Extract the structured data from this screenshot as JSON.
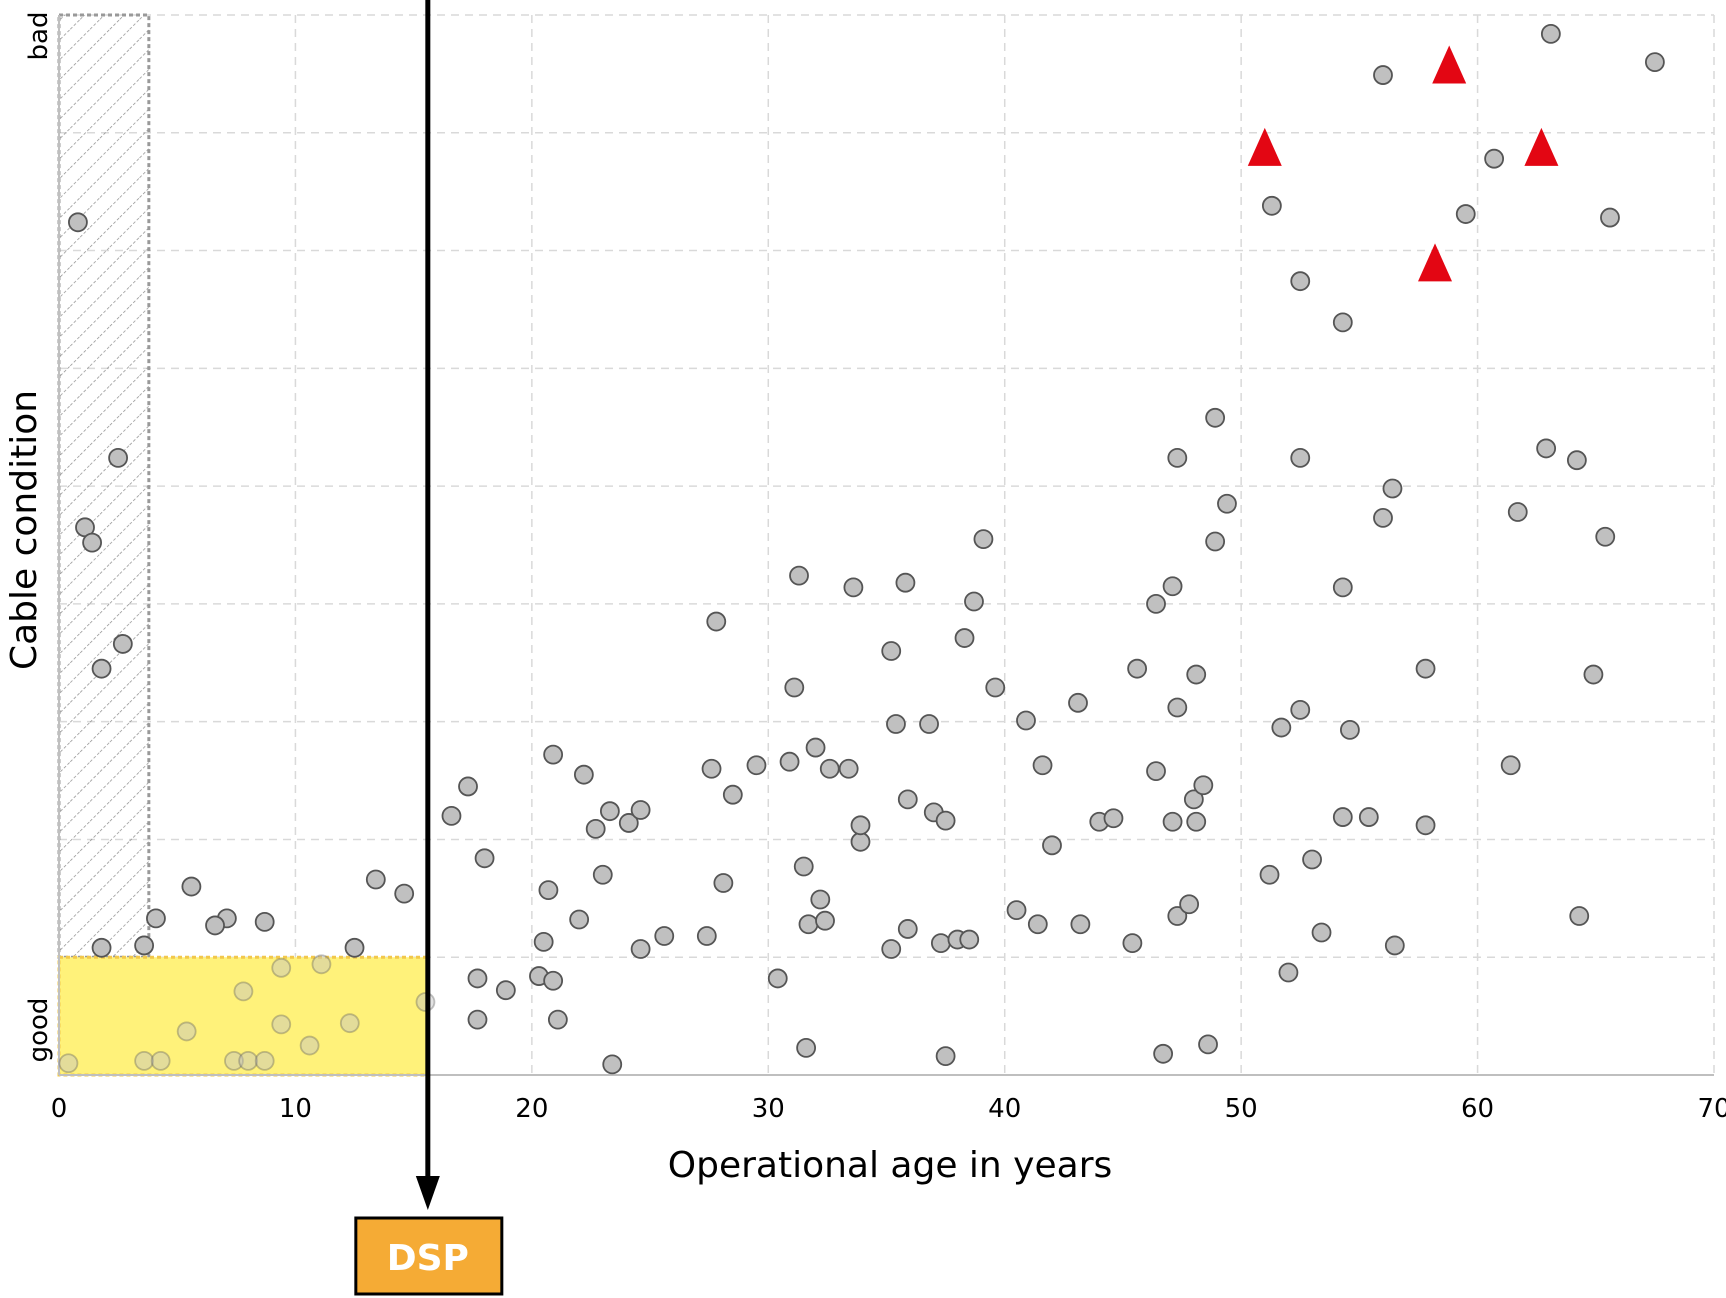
{
  "chart_data": {
    "type": "scatter",
    "xlabel": "Operational age in years",
    "ylabel": "Cable condition",
    "xlim": [
      0,
      70
    ],
    "ylim": [
      0,
      9
    ],
    "x_ticks": [
      "0",
      "10",
      "20",
      "30",
      "40",
      "50",
      "60",
      "70"
    ],
    "y_category_labels": {
      "low": "good",
      "high": "bad"
    },
    "grid": true,
    "highlight_regions": [
      {
        "type": "hatched",
        "x": [
          0,
          3.8
        ],
        "y": [
          1,
          9
        ],
        "color": "#999999"
      },
      {
        "type": "filled",
        "x": [
          0,
          15.6
        ],
        "y": [
          0,
          1
        ],
        "color": "#fff27a"
      }
    ],
    "marker_line": {
      "x": 15.6,
      "label": "DSP",
      "label_color": "#f5ab35"
    },
    "series": [
      {
        "marker": "circle",
        "color": "#c0c0c0",
        "points": [
          [
            0.4,
            0.1
          ],
          [
            3.6,
            0.12
          ],
          [
            4.3,
            0.12
          ],
          [
            7.4,
            0.12
          ],
          [
            8.0,
            0.12
          ],
          [
            8.7,
            0.12
          ],
          [
            10.6,
            0.25
          ],
          [
            5.4,
            0.37
          ],
          [
            9.4,
            0.43
          ],
          [
            12.3,
            0.44
          ],
          [
            7.8,
            0.71
          ],
          [
            9.4,
            0.91
          ],
          [
            11.1,
            0.94
          ],
          [
            15.5,
            0.62
          ],
          [
            1.8,
            1.08
          ],
          [
            3.6,
            1.1
          ],
          [
            4.1,
            1.33
          ],
          [
            7.1,
            1.33
          ],
          [
            8.7,
            1.3
          ],
          [
            6.6,
            1.27
          ],
          [
            5.6,
            1.6
          ],
          [
            12.5,
            1.08
          ],
          [
            13.4,
            1.66
          ],
          [
            14.6,
            1.54
          ],
          [
            0.8,
            7.24
          ],
          [
            2.5,
            5.24
          ],
          [
            1.1,
            4.65
          ],
          [
            1.4,
            4.52
          ],
          [
            2.7,
            3.66
          ],
          [
            1.8,
            3.45
          ],
          [
            16.6,
            2.2
          ],
          [
            17.3,
            2.45
          ],
          [
            17.7,
            0.82
          ],
          [
            18.0,
            1.84
          ],
          [
            17.7,
            0.47
          ],
          [
            18.9,
            0.72
          ],
          [
            20.3,
            0.84
          ],
          [
            20.5,
            1.13
          ],
          [
            20.7,
            1.57
          ],
          [
            20.9,
            0.8
          ],
          [
            20.9,
            2.72
          ],
          [
            21.1,
            0.47
          ],
          [
            22.0,
            1.32
          ],
          [
            22.2,
            2.55
          ],
          [
            22.7,
            2.09
          ],
          [
            23.0,
            1.7
          ],
          [
            23.3,
            2.24
          ],
          [
            23.4,
            0.09
          ],
          [
            24.1,
            2.14
          ],
          [
            24.6,
            2.25
          ],
          [
            24.6,
            1.07
          ],
          [
            25.6,
            1.18
          ],
          [
            27.4,
            1.18
          ],
          [
            27.6,
            2.6
          ],
          [
            27.8,
            3.85
          ],
          [
            28.1,
            1.63
          ],
          [
            28.5,
            2.38
          ],
          [
            29.5,
            2.63
          ],
          [
            30.4,
            0.82
          ],
          [
            30.9,
            2.66
          ],
          [
            31.1,
            3.29
          ],
          [
            31.3,
            4.24
          ],
          [
            31.5,
            1.77
          ],
          [
            31.6,
            0.23
          ],
          [
            31.7,
            1.28
          ],
          [
            32.0,
            2.78
          ],
          [
            32.2,
            1.49
          ],
          [
            32.4,
            1.31
          ],
          [
            32.6,
            2.6
          ],
          [
            33.4,
            2.6
          ],
          [
            33.6,
            4.14
          ],
          [
            33.9,
            1.98
          ],
          [
            33.9,
            2.12
          ],
          [
            35.2,
            3.6
          ],
          [
            35.2,
            1.07
          ],
          [
            35.4,
            2.98
          ],
          [
            35.8,
            4.18
          ],
          [
            35.9,
            2.34
          ],
          [
            35.9,
            1.24
          ],
          [
            36.8,
            2.98
          ],
          [
            37.0,
            2.23
          ],
          [
            37.3,
            1.12
          ],
          [
            37.5,
            2.16
          ],
          [
            37.5,
            0.16
          ],
          [
            38.0,
            1.15
          ],
          [
            38.3,
            3.71
          ],
          [
            38.5,
            1.15
          ],
          [
            38.7,
            4.02
          ],
          [
            39.1,
            4.55
          ],
          [
            39.6,
            3.29
          ],
          [
            40.5,
            1.4
          ],
          [
            40.9,
            3.01
          ],
          [
            41.4,
            1.28
          ],
          [
            41.6,
            2.63
          ],
          [
            42.0,
            1.95
          ],
          [
            43.1,
            3.16
          ],
          [
            43.2,
            1.28
          ],
          [
            44.0,
            2.15
          ],
          [
            44.6,
            2.18
          ],
          [
            45.4,
            1.12
          ],
          [
            45.6,
            3.45
          ],
          [
            46.4,
            2.58
          ],
          [
            46.4,
            4.0
          ],
          [
            46.7,
            0.18
          ],
          [
            47.1,
            4.15
          ],
          [
            47.1,
            2.15
          ],
          [
            47.3,
            1.35
          ],
          [
            47.3,
            3.12
          ],
          [
            47.3,
            5.24
          ],
          [
            47.8,
            1.45
          ],
          [
            48.0,
            2.34
          ],
          [
            48.1,
            3.4
          ],
          [
            48.1,
            2.15
          ],
          [
            48.4,
            2.46
          ],
          [
            48.6,
            0.26
          ],
          [
            48.9,
            5.58
          ],
          [
            48.9,
            4.53
          ],
          [
            49.4,
            4.85
          ],
          [
            51.2,
            1.7
          ],
          [
            51.3,
            7.38
          ],
          [
            51.7,
            2.95
          ],
          [
            52.0,
            0.87
          ],
          [
            52.5,
            3.1
          ],
          [
            52.5,
            6.74
          ],
          [
            52.5,
            5.24
          ],
          [
            53.0,
            1.83
          ],
          [
            53.4,
            1.21
          ],
          [
            54.3,
            6.39
          ],
          [
            54.3,
            2.19
          ],
          [
            54.3,
            4.14
          ],
          [
            54.6,
            2.93
          ],
          [
            55.4,
            2.19
          ],
          [
            56.0,
            8.49
          ],
          [
            56.0,
            4.73
          ],
          [
            56.4,
            4.98
          ],
          [
            56.5,
            1.1
          ],
          [
            57.8,
            3.45
          ],
          [
            57.8,
            2.12
          ],
          [
            59.5,
            7.31
          ],
          [
            60.7,
            7.78
          ],
          [
            61.4,
            2.63
          ],
          [
            61.7,
            4.78
          ],
          [
            62.9,
            5.32
          ],
          [
            63.1,
            8.84
          ],
          [
            64.3,
            1.35
          ],
          [
            64.2,
            5.22
          ],
          [
            64.9,
            3.4
          ],
          [
            65.4,
            4.57
          ],
          [
            65.6,
            7.28
          ],
          [
            67.5,
            8.6
          ]
        ]
      },
      {
        "marker": "triangle",
        "color": "#e30613",
        "points": [
          [
            58.8,
            8.58
          ],
          [
            51.0,
            7.88
          ],
          [
            62.7,
            7.88
          ],
          [
            58.2,
            6.9
          ]
        ]
      }
    ]
  }
}
